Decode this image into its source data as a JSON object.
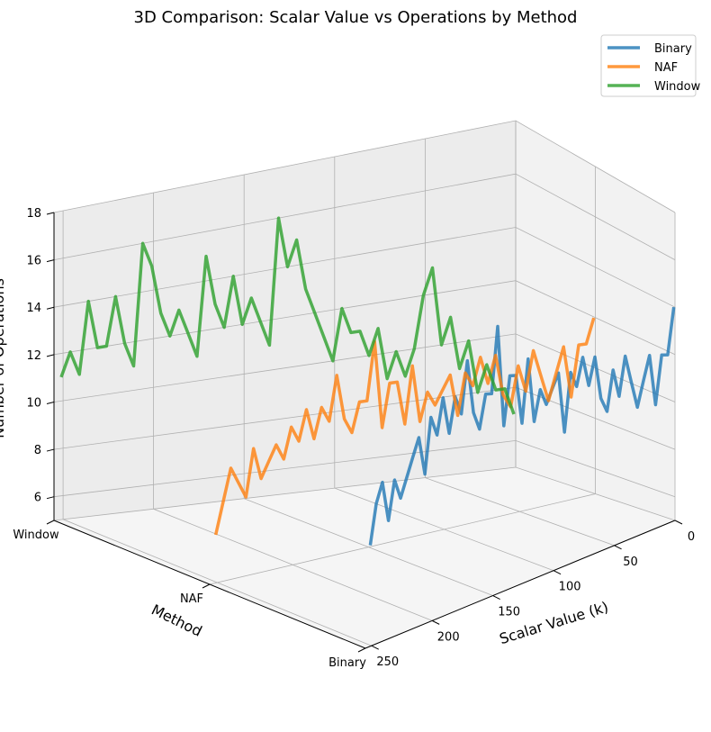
{
  "chart_data": {
    "type": "line3d",
    "title": "3D Comparison: Scalar Value vs Operations by Method",
    "xlabel": "Scalar Value (k)",
    "ylabel": "Method",
    "zlabel": "Number of Operations",
    "xlim": [
      0,
      255
    ],
    "zlim": [
      5,
      18
    ],
    "x_ticks": [
      0,
      50,
      100,
      150,
      200,
      250
    ],
    "z_ticks": [
      6,
      8,
      10,
      12,
      14,
      16,
      18
    ],
    "categories": [
      "Binary",
      "NAF",
      "Window"
    ],
    "colors": {
      "Binary": "#1f77b4",
      "NAF": "#ff7f0e",
      "Window": "#2ca02c"
    },
    "legend_position": "top-right",
    "x": [
      1,
      6,
      11,
      16,
      21,
      26,
      31,
      36,
      41,
      46,
      51,
      56,
      61,
      66,
      71,
      76,
      81,
      86,
      91,
      96,
      101,
      106,
      111,
      116,
      121,
      126,
      131,
      136,
      141,
      146,
      151,
      156,
      161,
      166,
      171,
      176,
      181,
      186,
      191,
      196,
      201,
      206,
      211,
      216,
      221,
      226,
      231,
      236,
      241,
      246,
      251
    ],
    "series": [
      {
        "name": "Binary",
        "values": [
          14,
          12,
          12,
          10,
          12,
          11,
          10,
          11,
          12,
          10.5,
          11.5,
          10,
          10.5,
          12,
          11,
          12,
          11,
          11.5,
          9.5,
          11.5,
          11,
          10.5,
          11,
          10,
          12,
          10,
          11.5,
          11.5,
          10,
          13,
          11,
          11,
          10,
          10.5,
          12,
          10.5,
          11,
          10,
          11,
          10,
          10.5,
          9,
          10,
          9.5,
          9,
          8.5,
          9,
          8,
          9,
          8.5,
          7.5
        ]
      },
      {
        "name": "NAF",
        "values": [
          12,
          11,
          11,
          9,
          11,
          10,
          9,
          10,
          11,
          9.5,
          10.5,
          9,
          9.5,
          11,
          10,
          11,
          10,
          10.5,
          9,
          10.5,
          10,
          9.5,
          10,
          9,
          11,
          9,
          10.5,
          10.5,
          9,
          12,
          10,
          10,
          9,
          9.5,
          11,
          9.5,
          10,
          9,
          10,
          9,
          9.5,
          8.5,
          9,
          8.5,
          8,
          9,
          7.5,
          8,
          8.5,
          7.5,
          6.5
        ]
      },
      {
        "name": "Window",
        "values": [
          7,
          8,
          8,
          9,
          8,
          10,
          9,
          11,
          10,
          13,
          12,
          10,
          9,
          10,
          9,
          11,
          10,
          11,
          11,
          12,
          10,
          11,
          12,
          13,
          15,
          14,
          16,
          11,
          12,
          13,
          12,
          14,
          12,
          13,
          15,
          11,
          12,
          13,
          12,
          13,
          15,
          16,
          11,
          12,
          14,
          12,
          12,
          14,
          11,
          12,
          11
        ]
      }
    ]
  }
}
